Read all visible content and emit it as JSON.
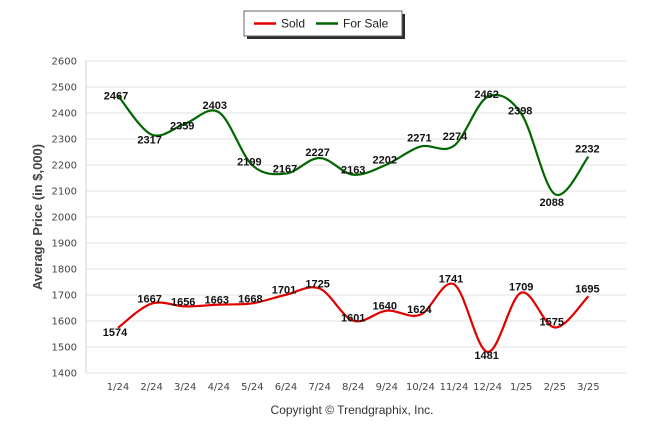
{
  "chart_data": {
    "type": "line",
    "title": "",
    "xlabel": "",
    "ylabel": "Average Price (in $,000)",
    "categories": [
      "1/24",
      "2/24",
      "3/24",
      "4/24",
      "5/24",
      "6/24",
      "7/24",
      "8/24",
      "9/24",
      "10/24",
      "11/24",
      "12/24",
      "1/25",
      "2/25",
      "3/25"
    ],
    "y_ticks": [
      1400,
      1500,
      1600,
      1700,
      1800,
      1900,
      2000,
      2100,
      2200,
      2300,
      2400,
      2500,
      2600
    ],
    "ylim": [
      1400,
      2600
    ],
    "grid": "horizontal",
    "legend_position": "top-center",
    "series": [
      {
        "name": "Sold",
        "color": "#e00000",
        "values": [
          1574,
          1667,
          1656,
          1663,
          1668,
          1701,
          1725,
          1601,
          1640,
          1624,
          1741,
          1481,
          1709,
          1575,
          1695
        ]
      },
      {
        "name": "For Sale",
        "color": "#006600",
        "values": [
          2467,
          2317,
          2359,
          2403,
          2199,
          2167,
          2227,
          2163,
          2202,
          2271,
          2274,
          2462,
          2398,
          2088,
          2232
        ]
      }
    ],
    "copyright": "Copyright © Trendgraphix, Inc."
  }
}
